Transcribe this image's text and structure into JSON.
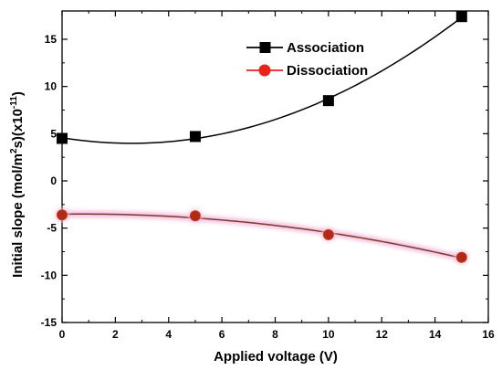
{
  "chart_data": {
    "type": "scatter",
    "xlabel": "Applied voltage (V)",
    "ylabel": "Initial slope (mol/m",
    "ylabel_sup1": "2",
    "ylabel_mid": "s)(x10",
    "ylabel_sup2": "-11",
    "ylabel_end": ")",
    "xlim": [
      0,
      16
    ],
    "ylim": [
      -15,
      18
    ],
    "xticks": [
      0,
      2,
      4,
      6,
      8,
      10,
      12,
      14,
      16
    ],
    "yticks": [
      -15,
      -10,
      -5,
      0,
      5,
      10,
      15
    ],
    "legend_position": "upper-center",
    "grid": false,
    "series": [
      {
        "name": "Association",
        "marker": "square",
        "color": "#000000",
        "fill": "#000000",
        "x": [
          0,
          5,
          10,
          15
        ],
        "y": [
          4.5,
          4.7,
          8.5,
          17.4
        ],
        "fit": "quadratic"
      },
      {
        "name": "Dissociation",
        "marker": "circle",
        "color": "#e8231c",
        "fill": "#b02a18",
        "x": [
          0,
          5,
          10,
          15
        ],
        "y": [
          -3.6,
          -3.7,
          -5.7,
          -8.1
        ],
        "fit": "quadratic"
      }
    ]
  }
}
